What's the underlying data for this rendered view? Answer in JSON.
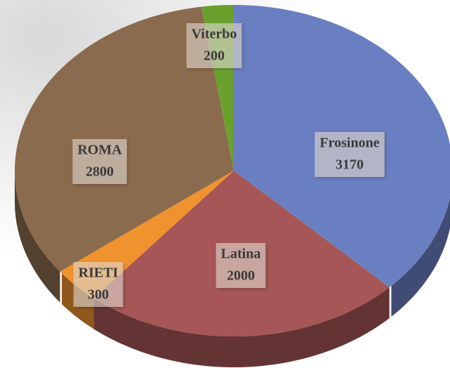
{
  "chart_data": {
    "type": "pie",
    "categories": [
      "Frosinone",
      "Latina",
      "RIETI",
      "ROMA",
      "Viterbo"
    ],
    "values": [
      3170,
      2000,
      300,
      2800,
      200
    ],
    "colors": [
      "#6a7fc1",
      "#a65656",
      "#f0922e",
      "#8b6b4d",
      "#6aa12e"
    ]
  }
}
